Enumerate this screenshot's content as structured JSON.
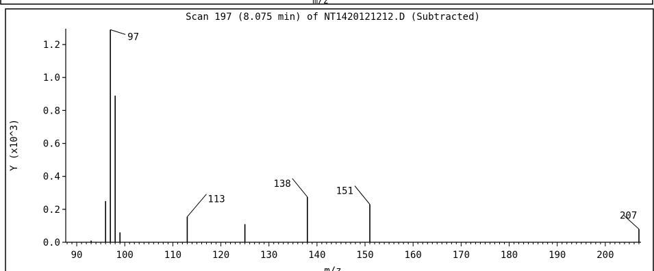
{
  "window": {
    "top_label": "m/z"
  },
  "chart_data": {
    "type": "bar",
    "title": "Scan 197 (8.075 min) of NT1420121212.D (Subtracted)",
    "xlabel": "m/z",
    "ylabel": "Y (x10^3)",
    "xlim": [
      88,
      207
    ],
    "ylim": [
      0,
      1.3
    ],
    "grid": false,
    "x_ticks": [
      90,
      100,
      110,
      120,
      130,
      140,
      150,
      160,
      170,
      180,
      190,
      200
    ],
    "y_ticks": [
      0.0,
      0.2,
      0.4,
      0.6,
      0.8,
      1.0,
      1.2
    ],
    "peaks": [
      {
        "mz": 93,
        "y": 0.01
      },
      {
        "mz": 96,
        "y": 0.25
      },
      {
        "mz": 97,
        "y": 1.29
      },
      {
        "mz": 98,
        "y": 0.89
      },
      {
        "mz": 99,
        "y": 0.06
      },
      {
        "mz": 113,
        "y": 0.155
      },
      {
        "mz": 125,
        "y": 0.11
      },
      {
        "mz": 138,
        "y": 0.275
      },
      {
        "mz": 151,
        "y": 0.23
      },
      {
        "mz": 207,
        "y": 0.08
      }
    ],
    "annotations": [
      {
        "text": "97",
        "mz": 97
      },
      {
        "text": "113",
        "mz": 113
      },
      {
        "text": "138",
        "mz": 138
      },
      {
        "text": "151",
        "mz": 151
      },
      {
        "text": "207",
        "mz": 207
      }
    ]
  }
}
